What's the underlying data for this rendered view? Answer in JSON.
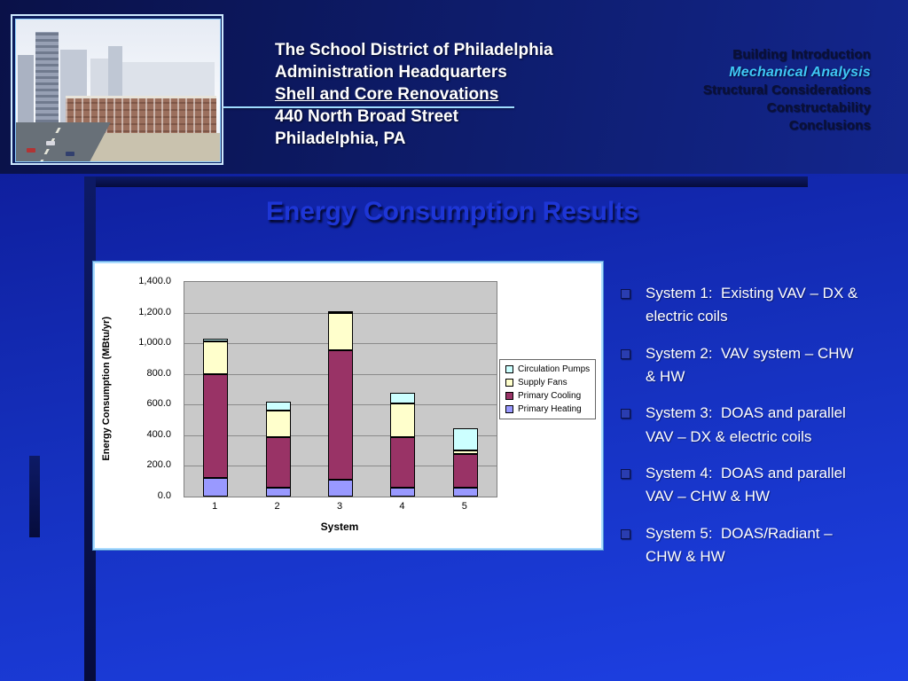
{
  "header": {
    "title_lines": [
      {
        "text": "The School District of Philadelphia",
        "underline": false
      },
      {
        "text": "Administration Headquarters",
        "underline": false
      },
      {
        "text": "Shell and Core Renovations",
        "underline": true
      },
      {
        "text": "440 North Broad Street",
        "underline": false
      },
      {
        "text": "Philadelphia, PA",
        "underline": false
      }
    ]
  },
  "nav": {
    "items": [
      {
        "label": "Building Introduction",
        "active": false
      },
      {
        "label": "Mechanical Analysis",
        "active": true
      },
      {
        "label": "Structural Considerations",
        "active": false
      },
      {
        "label": "Constructability",
        "active": false
      },
      {
        "label": "Conclusions",
        "active": false
      }
    ]
  },
  "slide": {
    "title": "Energy Consumption Results"
  },
  "bullets": [
    "System 1:  Existing VAV – DX & electric coils",
    "System 2:  VAV system – CHW & HW",
    "System 3:  DOAS and parallel VAV – DX & electric coils",
    "System 4:  DOAS and parallel VAV – CHW & HW",
    "System 5:  DOAS/Radiant – CHW & HW"
  ],
  "colors": {
    "nav_active": "#3fc8f5",
    "nav_text": "#0a1038",
    "slide_title_blue": "#1e36d6",
    "background_blue": "#1530bd"
  },
  "chart_data": {
    "type": "bar",
    "stacked": true,
    "categories": [
      "1",
      "2",
      "3",
      "4",
      "5"
    ],
    "series": [
      {
        "name": "Primary Heating",
        "color": "#9999ff",
        "values": [
          120,
          60,
          110,
          60,
          60
        ]
      },
      {
        "name": "Primary Cooling",
        "color": "#993366",
        "values": [
          680,
          325,
          845,
          330,
          215
        ]
      },
      {
        "name": "Supply Fans",
        "color": "#ffffcc",
        "values": [
          210,
          175,
          245,
          215,
          25
        ]
      },
      {
        "name": "Circulation Pumps",
        "color": "#ccffff",
        "values": [
          20,
          60,
          10,
          70,
          145
        ]
      }
    ],
    "legend_order": [
      "Circulation Pumps",
      "Supply Fans",
      "Primary Cooling",
      "Primary Heating"
    ],
    "xlabel": "System",
    "ylabel": "Energy Consumption (MBtu/yr)",
    "ylim": [
      0,
      1400
    ],
    "ytick_step": 200,
    "ytick_labels": [
      "0.0",
      "200.0",
      "400.0",
      "600.0",
      "800.0",
      "1,000.0",
      "1,200.0",
      "1,400.0"
    ],
    "legend_position": "right",
    "grid": true,
    "plot_bg": "#c9c9c9"
  }
}
